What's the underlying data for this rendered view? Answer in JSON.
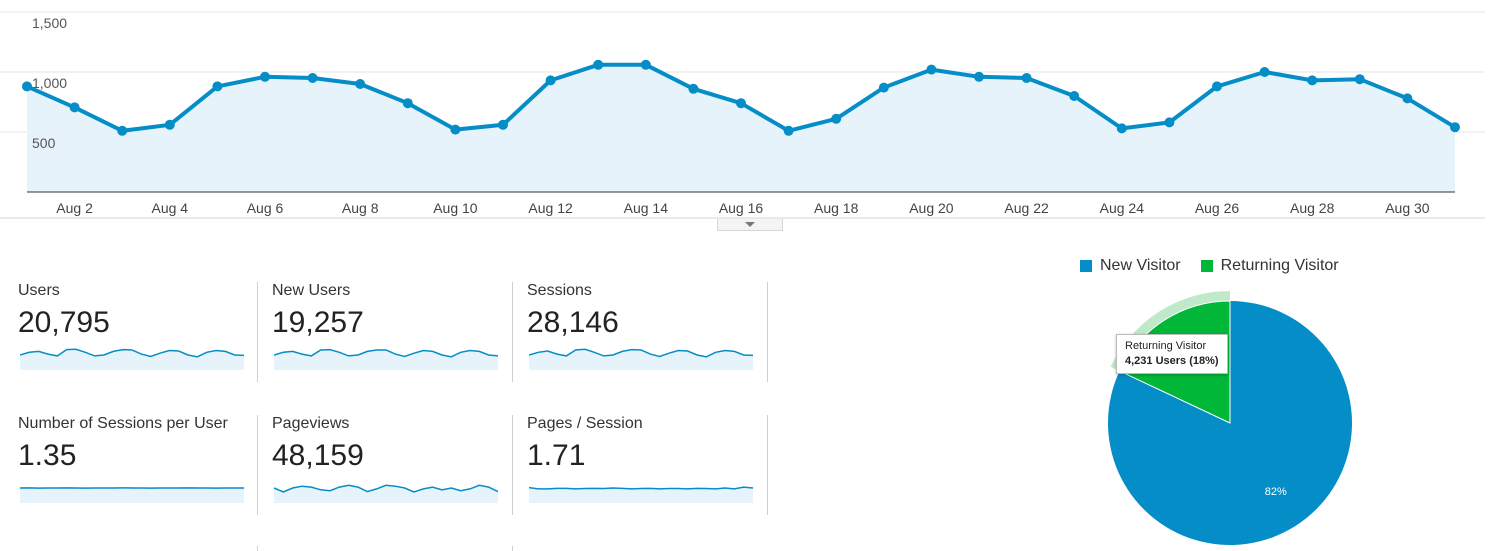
{
  "colors": {
    "accent": "#058dc7",
    "area_fill": "#e6f3fb",
    "returning": "#00b737",
    "returning_highlight": "#bfe9c8",
    "grid": "#e6e6e6"
  },
  "chart_data": [
    {
      "type": "area",
      "title": "",
      "ylim": [
        0,
        1500
      ],
      "y_ticks": [
        "500",
        "1,000",
        "1,500"
      ],
      "y_tick_values": [
        500,
        1000,
        1500
      ],
      "x_tick_labels": [
        "Aug 2",
        "Aug 4",
        "Aug 6",
        "Aug 8",
        "Aug 10",
        "Aug 12",
        "Aug 14",
        "Aug 16",
        "Aug 18",
        "Aug 20",
        "Aug 22",
        "Aug 24",
        "Aug 26",
        "Aug 28",
        "Aug 30"
      ],
      "x_days": [
        1,
        2,
        3,
        4,
        5,
        6,
        7,
        8,
        9,
        10,
        11,
        12,
        13,
        14,
        15,
        16,
        17,
        18,
        19,
        20,
        21,
        22,
        23,
        24,
        25,
        26,
        27,
        28,
        29,
        30,
        31
      ],
      "series": [
        {
          "values": [
            880,
            705,
            510,
            560,
            880,
            960,
            950,
            900,
            740,
            520,
            560,
            930,
            1060,
            1060,
            860,
            740,
            510,
            610,
            870,
            1020,
            960,
            950,
            800,
            530,
            580,
            880,
            1000,
            930,
            940,
            780,
            540
          ]
        }
      ]
    },
    {
      "type": "pie",
      "legend": [
        "New Visitor",
        "Returning Visitor"
      ],
      "values": [
        82,
        18
      ],
      "slice_labels": [
        "82%",
        ""
      ]
    }
  ],
  "tooltip": {
    "title": "Returning Visitor",
    "value": "4,231 Users (18%)"
  },
  "metrics": [
    {
      "label": "Users",
      "value": "20,795",
      "spark": [
        0.5,
        0.35,
        0.3,
        0.45,
        0.55,
        0.2,
        0.18,
        0.35,
        0.55,
        0.5,
        0.3,
        0.2,
        0.22,
        0.45,
        0.58,
        0.4,
        0.25,
        0.28,
        0.5,
        0.6,
        0.35,
        0.25,
        0.3,
        0.5,
        0.52
      ]
    },
    {
      "label": "New Users",
      "value": "19,257",
      "spark": [
        0.5,
        0.35,
        0.3,
        0.45,
        0.55,
        0.22,
        0.2,
        0.35,
        0.55,
        0.5,
        0.3,
        0.22,
        0.22,
        0.45,
        0.58,
        0.4,
        0.25,
        0.3,
        0.5,
        0.6,
        0.35,
        0.25,
        0.3,
        0.5,
        0.55
      ]
    },
    {
      "label": "Sessions",
      "value": "28,146",
      "spark": [
        0.5,
        0.35,
        0.28,
        0.45,
        0.55,
        0.22,
        0.18,
        0.35,
        0.55,
        0.5,
        0.3,
        0.2,
        0.22,
        0.45,
        0.58,
        0.4,
        0.25,
        0.28,
        0.5,
        0.6,
        0.35,
        0.25,
        0.3,
        0.5,
        0.52
      ]
    },
    {
      "label": "Number of Sessions per User",
      "value": "1.35",
      "spark": [
        0.5,
        0.49,
        0.51,
        0.5,
        0.5,
        0.49,
        0.5,
        0.51,
        0.5,
        0.5,
        0.5,
        0.49,
        0.5,
        0.5,
        0.51,
        0.5,
        0.5,
        0.5,
        0.49,
        0.5,
        0.5,
        0.51,
        0.5,
        0.5,
        0.5
      ]
    },
    {
      "label": "Pageviews",
      "value": "48,159",
      "spark": [
        0.5,
        0.72,
        0.5,
        0.4,
        0.45,
        0.6,
        0.65,
        0.45,
        0.35,
        0.45,
        0.7,
        0.55,
        0.35,
        0.4,
        0.5,
        0.72,
        0.55,
        0.45,
        0.6,
        0.5,
        0.65,
        0.55,
        0.35,
        0.45,
        0.7
      ]
    },
    {
      "label": "Pages / Session",
      "value": "1.71",
      "spark": [
        0.48,
        0.55,
        0.55,
        0.52,
        0.52,
        0.55,
        0.53,
        0.52,
        0.53,
        0.5,
        0.52,
        0.55,
        0.53,
        0.52,
        0.55,
        0.53,
        0.53,
        0.55,
        0.52,
        0.53,
        0.55,
        0.5,
        0.55,
        0.45,
        0.5
      ]
    }
  ]
}
